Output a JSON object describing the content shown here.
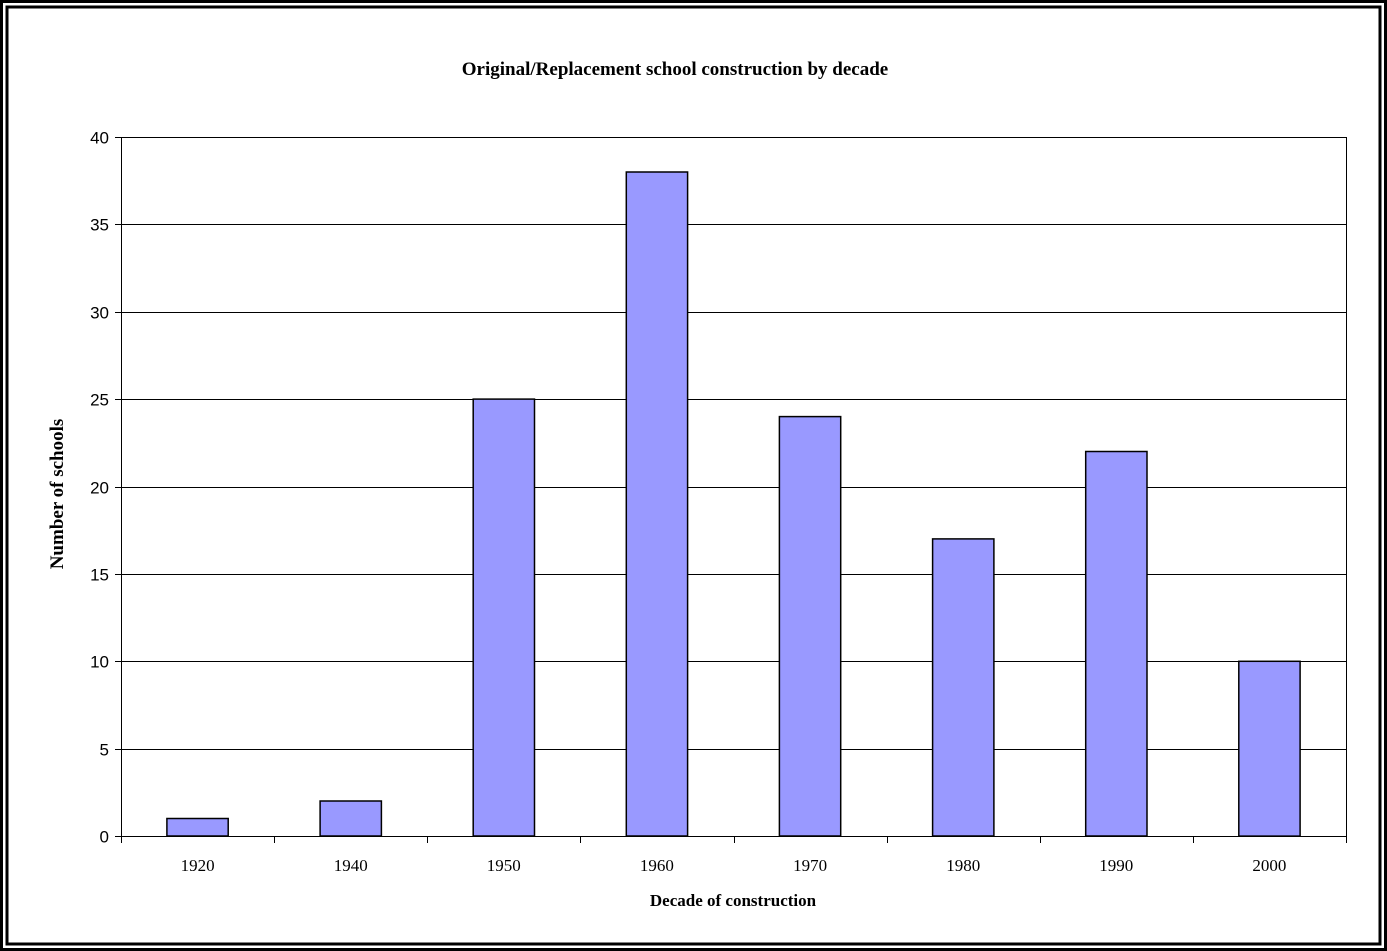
{
  "chart_data": {
    "type": "bar",
    "title": "Original/Replacement school construction by decade",
    "xlabel": "Decade of construction",
    "ylabel": "Number of schools",
    "categories": [
      "1920",
      "1940",
      "1950",
      "1960",
      "1970",
      "1980",
      "1990",
      "2000"
    ],
    "values": [
      1,
      2,
      25,
      38,
      24,
      17,
      22,
      10
    ],
    "ylim": [
      0,
      40
    ],
    "yticks": [
      0,
      5,
      10,
      15,
      20,
      25,
      30,
      35,
      40
    ],
    "grid": "horizontal",
    "legend": "none",
    "colors": {
      "bar_fill": "#9999ff",
      "bar_stroke": "#000000",
      "grid": "#000000",
      "frame": "#000000"
    }
  }
}
